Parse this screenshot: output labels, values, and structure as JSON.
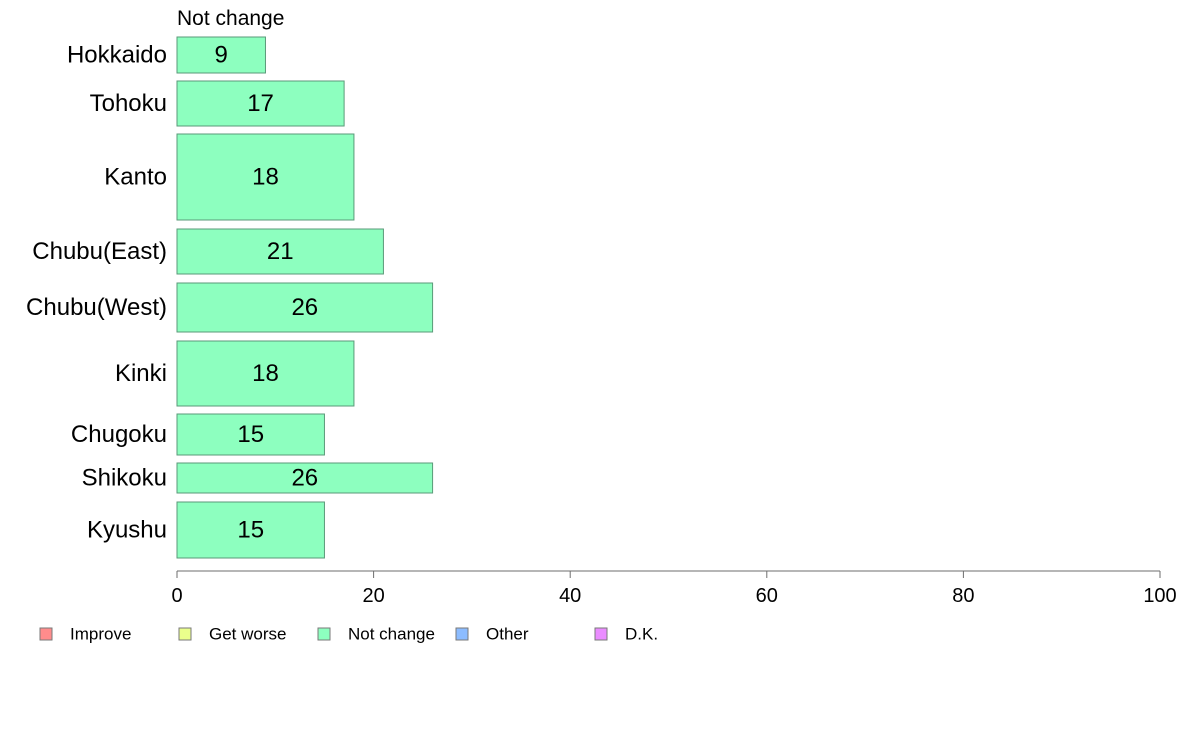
{
  "chart_data": {
    "type": "bar",
    "orientation": "horizontal",
    "title": "Not change",
    "categories": [
      "Hokkaido",
      "Tohoku",
      "Kanto",
      "Chubu(East)",
      "Chubu(West)",
      "Kinki",
      "Chugoku",
      "Shikoku",
      "Kyushu"
    ],
    "series": [
      {
        "name": "Not change",
        "values": [
          9,
          17,
          18,
          21,
          26,
          18,
          15,
          26,
          15
        ],
        "color": "#8dffbf"
      }
    ],
    "data_labels": [
      "9",
      "17",
      "18",
      "21",
      "26",
      "18",
      "15",
      "26",
      "15"
    ],
    "xlim": [
      0,
      100
    ],
    "x_ticks": [
      0,
      20,
      40,
      60,
      80,
      100
    ],
    "x_tick_labels": [
      "0",
      "20",
      "40",
      "60",
      "80",
      "100"
    ],
    "xlabel": "",
    "ylabel": "",
    "grid": false,
    "legend": {
      "position": "bottom-left",
      "entries": [
        {
          "label": "Improve",
          "color": "#ff8c8c"
        },
        {
          "label": "Get worse",
          "color": "#eaff8c"
        },
        {
          "label": "Not change",
          "color": "#8dffbf"
        },
        {
          "label": "Other",
          "color": "#8cbcff"
        },
        {
          "label": "D.K.",
          "color": "#ea8cff"
        }
      ]
    },
    "bar_edge_color": "#5a9a78"
  }
}
